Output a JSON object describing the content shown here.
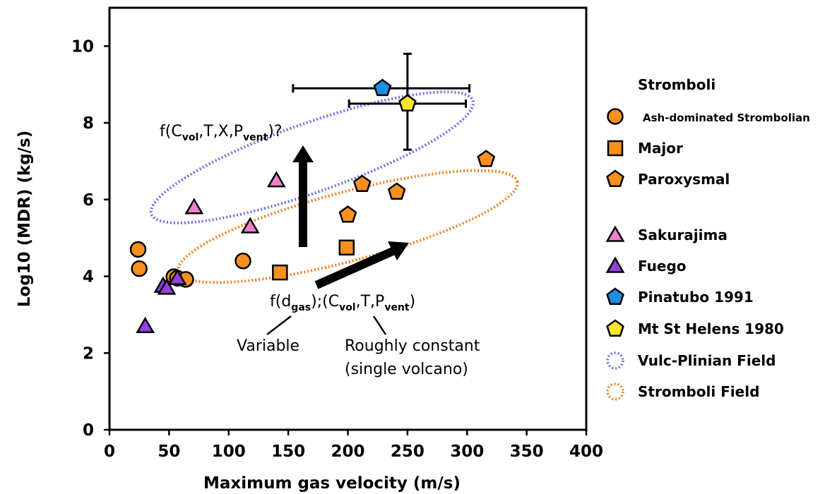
{
  "chart_data": {
    "type": "scatter",
    "xlabel": "Maximum gas velocity (m/s)",
    "ylabel": "Log10 (MDR) (kg/s)",
    "xlim": [
      0,
      400
    ],
    "ylim": [
      0,
      11
    ],
    "x_ticks": [
      0,
      50,
      100,
      150,
      200,
      250,
      300,
      350,
      400
    ],
    "y_ticks": [
      0,
      2,
      4,
      6,
      8,
      10
    ],
    "grid": false,
    "legend_placement": "right",
    "colors": {
      "orange": "#f7901e",
      "pink": "#ee82c8",
      "purple": "#9440dc",
      "blue": "#1a8fe0",
      "yellow": "#f7e42b",
      "vulc_field": "#6b6bea",
      "strom_field": "#f47b20"
    },
    "legend_title": "Stromboli",
    "series": [
      {
        "name": "Ash-dominated Strombolian",
        "marker": "circle",
        "color": "#f7901e",
        "points": [
          [
            24,
            4.7
          ],
          [
            25,
            4.2
          ],
          [
            54,
            3.99
          ],
          [
            57,
            3.95
          ],
          [
            64,
            3.92
          ],
          [
            112,
            4.4
          ]
        ]
      },
      {
        "name": "Major",
        "marker": "square",
        "color": "#f7901e",
        "points": [
          [
            143,
            4.1
          ],
          [
            199,
            4.75
          ]
        ]
      },
      {
        "name": "Paroxysmal",
        "marker": "pentagon",
        "color": "#f7901e",
        "points": [
          [
            200,
            5.6
          ],
          [
            212,
            6.4
          ],
          [
            241,
            6.2
          ],
          [
            316,
            7.05
          ]
        ]
      },
      {
        "name": "Sakurajima",
        "marker": "triangle",
        "color": "#ee82c8",
        "points": [
          [
            71,
            5.8
          ],
          [
            118,
            5.3
          ],
          [
            140,
            6.5
          ]
        ]
      },
      {
        "name": "Fuego",
        "marker": "triangle",
        "color": "#9440dc",
        "points": [
          [
            30,
            2.7
          ],
          [
            45,
            3.75
          ],
          [
            48,
            3.7
          ],
          [
            57,
            3.95
          ]
        ]
      },
      {
        "name": "Pinatubo 1991",
        "marker": "pentagon",
        "color": "#1a8fe0",
        "points": [
          [
            229,
            8.9
          ]
        ],
        "xerr": [
          [
            154,
            302
          ]
        ]
      },
      {
        "name": "Mt St Helens 1980",
        "marker": "pentagon",
        "color": "#f7e42b",
        "points": [
          [
            250,
            8.5
          ]
        ],
        "xerr": [
          [
            201,
            299
          ]
        ],
        "yerr": [
          [
            7.3,
            9.8
          ]
        ]
      },
      {
        "name": "Vulc-Plinian Field",
        "marker": "dotted-ellipse",
        "color": "#6b6bea",
        "ellipse": {
          "cx": 170,
          "cy": 7.1,
          "rx": 143,
          "ry": 0.9,
          "angle_deg": -19.5
        }
      },
      {
        "name": "Stromboli Field",
        "marker": "dotted-ellipse",
        "color": "#f47b20",
        "ellipse": {
          "cx": 200,
          "cy": 5.3,
          "rx": 147,
          "ry": 0.9,
          "angle_deg": -14.9
        }
      }
    ],
    "annotations": {
      "upper_formula": {
        "prefix": "f(C",
        "sub1": "vol",
        "mid": ",T,X,P",
        "sub2": "vent",
        "suffix": ")?"
      },
      "lower_formula": {
        "prefix": "f(d",
        "sub1": "gas",
        "mid1": ");(C",
        "sub2": "vol",
        "mid2": ",T,P",
        "sub3": "vent",
        "suffix": ")"
      },
      "variable_label": "Variable",
      "constant_label_line1": "Roughly constant",
      "constant_label_line2": "(single volcano)"
    }
  }
}
